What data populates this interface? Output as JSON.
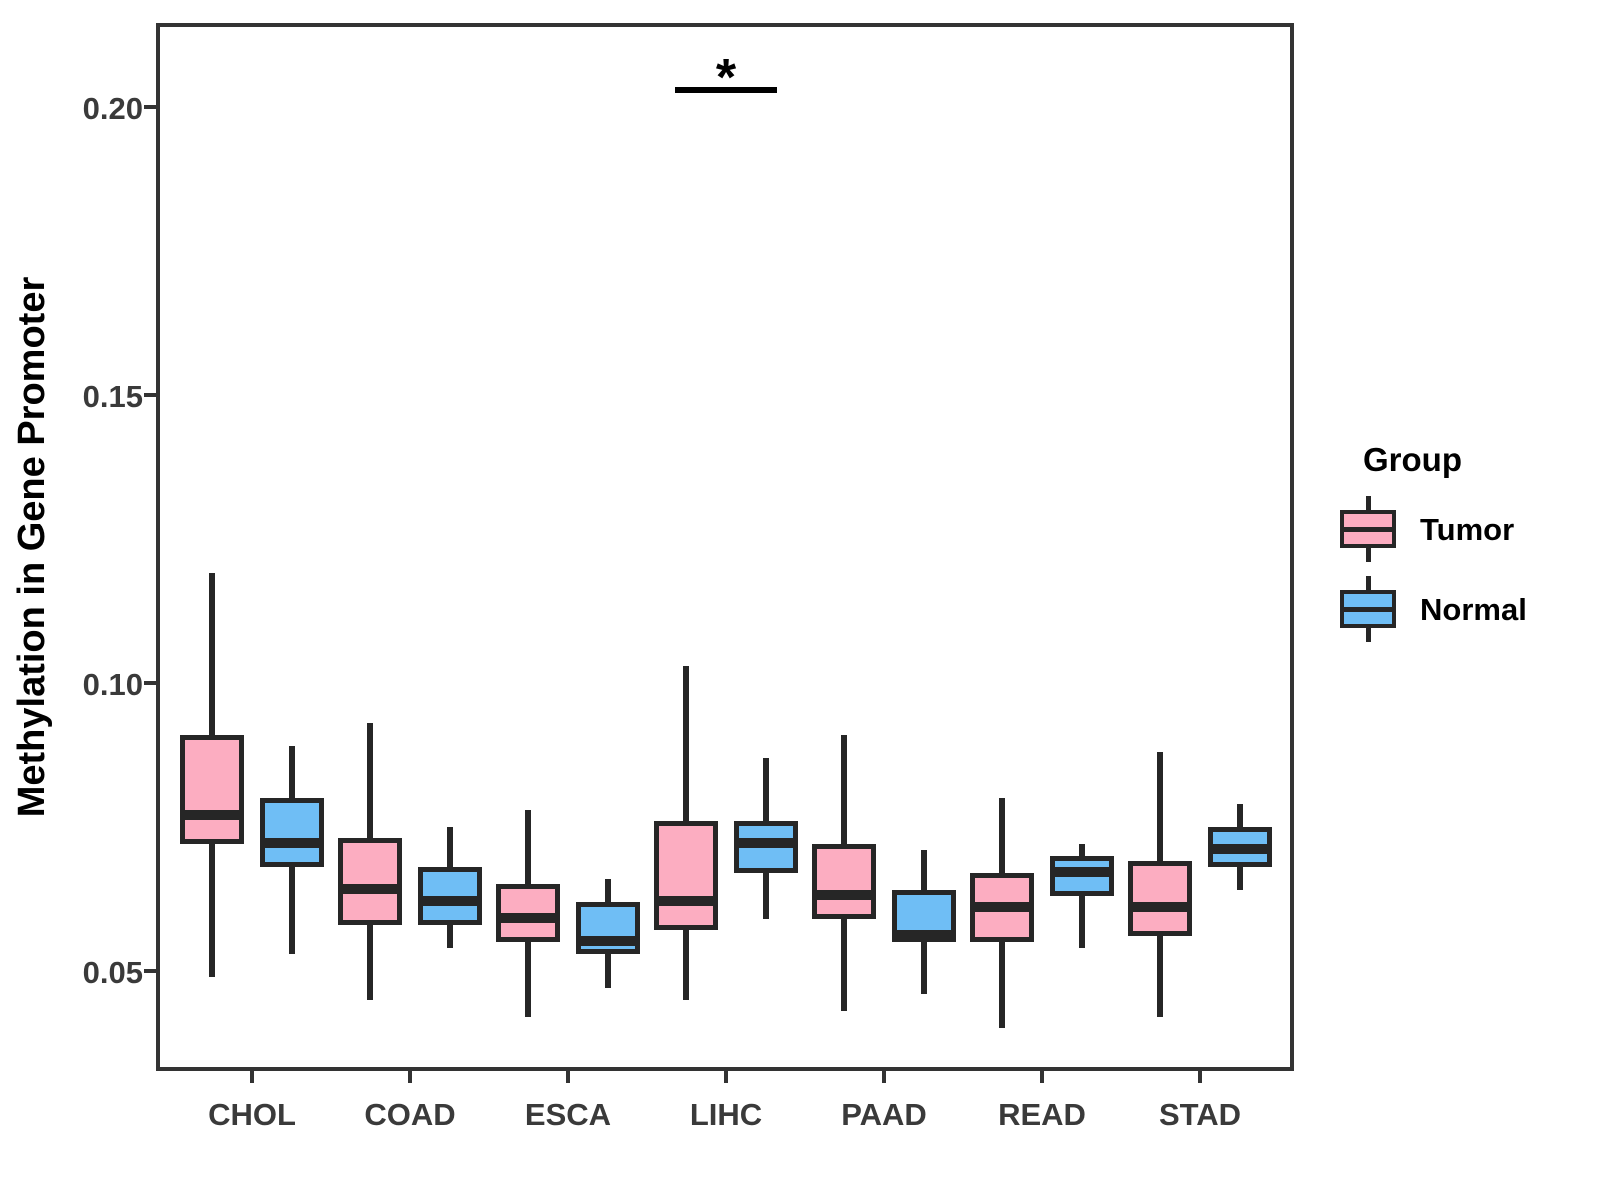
{
  "chart_data": {
    "type": "boxplot",
    "title": "",
    "xlabel": "",
    "ylabel": "Methylation in Gene Promoter",
    "categories": [
      "CHOL",
      "COAD",
      "ESCA",
      "LIHC",
      "PAAD",
      "READ",
      "STAD"
    ],
    "ylim": [
      0.0326,
      0.2146
    ],
    "yticks": [
      0.05,
      0.1,
      0.15,
      0.2
    ],
    "ytick_labels": [
      "0.05",
      "0.10",
      "0.15",
      "0.20"
    ],
    "grid": "off",
    "legend_position": "right",
    "series": [
      {
        "name": "Tumor",
        "fill": "#FCADC1",
        "stroke": "#262626",
        "values": [
          {
            "low": 0.049,
            "q1": 0.072,
            "median": 0.078,
            "q3": 0.091,
            "high": 0.119
          },
          {
            "low": 0.045,
            "q1": 0.058,
            "median": 0.065,
            "q3": 0.073,
            "high": 0.093
          },
          {
            "low": 0.042,
            "q1": 0.055,
            "median": 0.06,
            "q3": 0.065,
            "high": 0.078
          },
          {
            "low": 0.045,
            "q1": 0.057,
            "median": 0.063,
            "q3": 0.076,
            "high": 0.103
          },
          {
            "low": 0.043,
            "q1": 0.059,
            "median": 0.064,
            "q3": 0.072,
            "high": 0.091
          },
          {
            "low": 0.04,
            "q1": 0.055,
            "median": 0.062,
            "q3": 0.067,
            "high": 0.08
          },
          {
            "low": 0.042,
            "q1": 0.056,
            "median": 0.062,
            "q3": 0.069,
            "high": 0.088
          }
        ]
      },
      {
        "name": "Normal",
        "fill": "#6FBEF5",
        "stroke": "#262626",
        "values": [
          {
            "low": 0.053,
            "q1": 0.068,
            "median": 0.073,
            "q3": 0.08,
            "high": 0.089
          },
          {
            "low": 0.054,
            "q1": 0.058,
            "median": 0.063,
            "q3": 0.068,
            "high": 0.075
          },
          {
            "low": 0.047,
            "q1": 0.053,
            "median": 0.056,
            "q3": 0.062,
            "high": 0.066
          },
          {
            "low": 0.059,
            "q1": 0.067,
            "median": 0.073,
            "q3": 0.076,
            "high": 0.087
          },
          {
            "low": 0.046,
            "q1": 0.055,
            "median": 0.057,
            "q3": 0.064,
            "high": 0.071
          },
          {
            "low": 0.054,
            "q1": 0.063,
            "median": 0.068,
            "q3": 0.07,
            "high": 0.072
          },
          {
            "low": 0.064,
            "q1": 0.068,
            "median": 0.072,
            "q3": 0.075,
            "high": 0.079
          }
        ]
      }
    ],
    "annotation": {
      "label": "*",
      "category": "LIHC",
      "bar_y": 0.203
    },
    "legend": {
      "title": "Group",
      "entries": [
        {
          "label": "Tumor",
          "fill": "#FCADC1"
        },
        {
          "label": "Normal",
          "fill": "#6FBEF5"
        }
      ]
    }
  }
}
